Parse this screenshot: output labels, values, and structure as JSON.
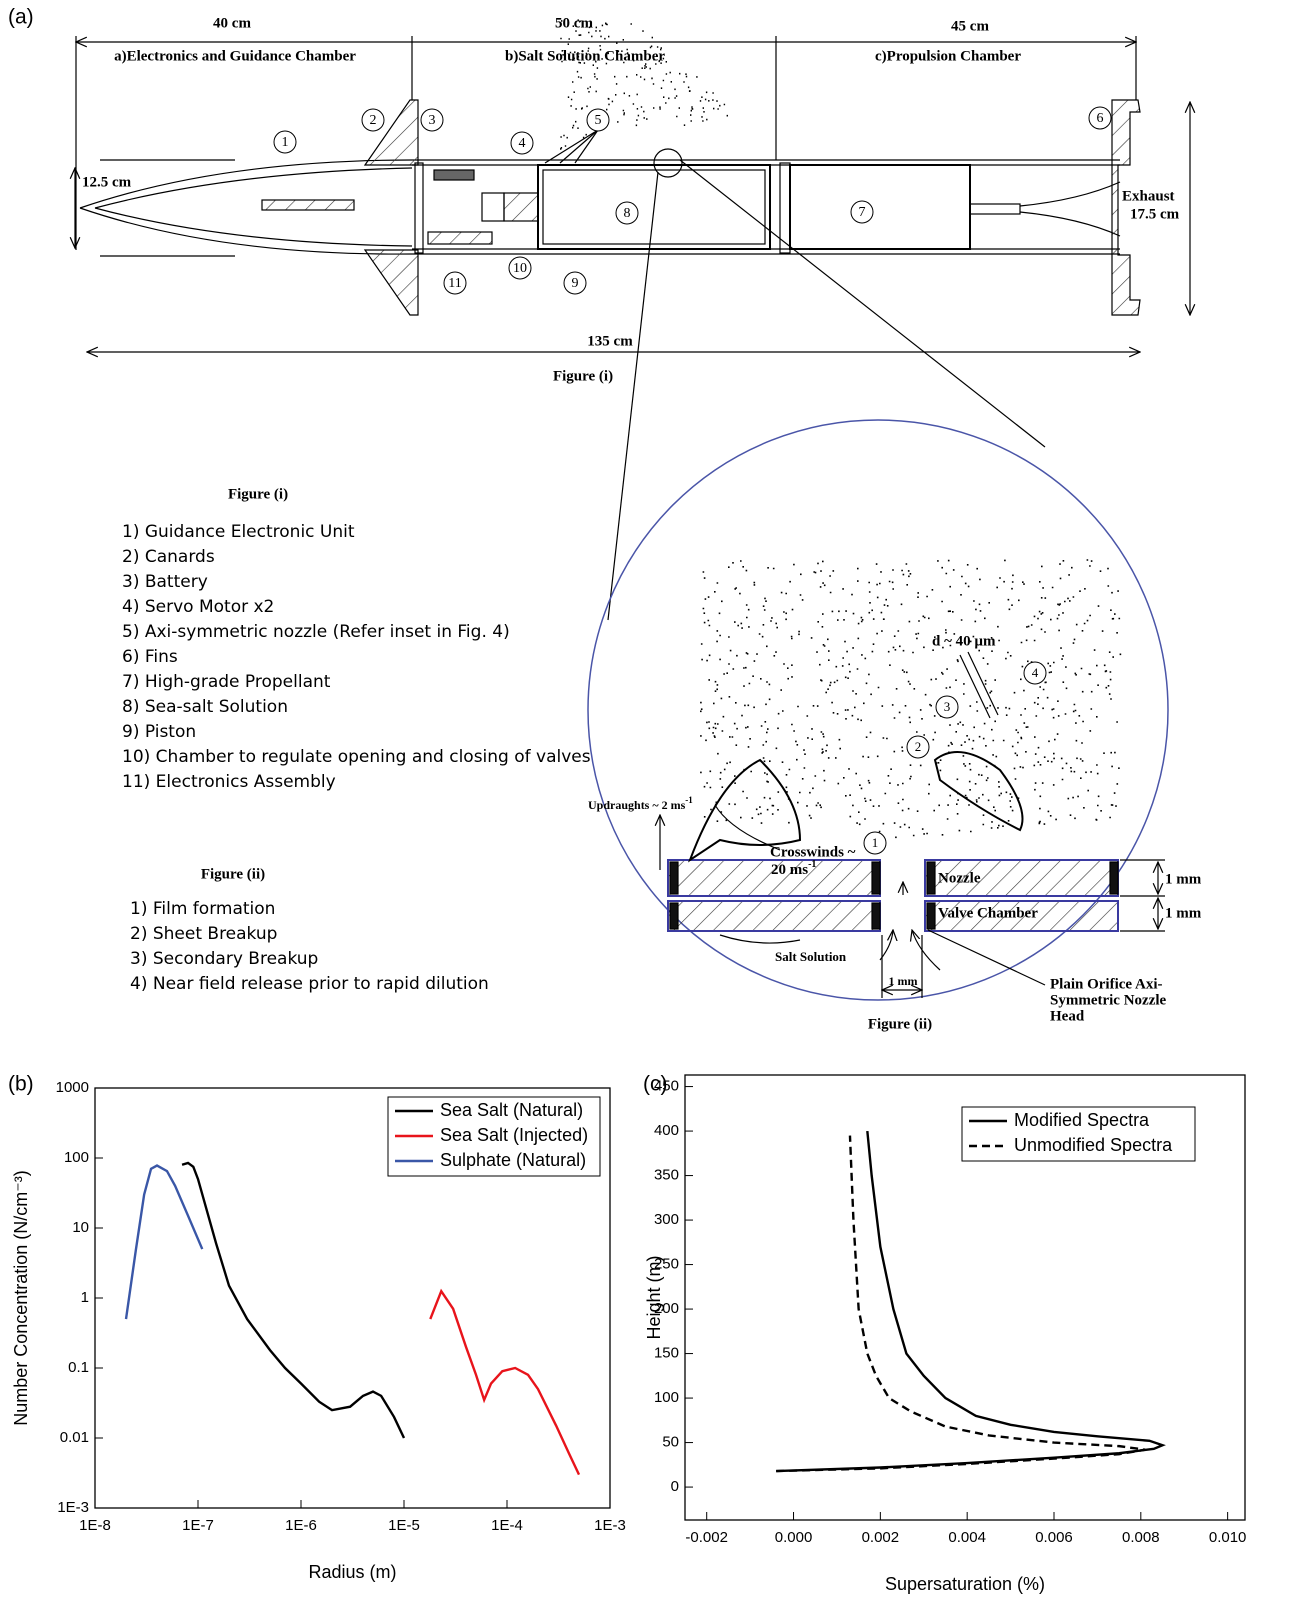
{
  "panel_a": {
    "label": "(a)",
    "top_dimensions": [
      "40 cm",
      "50 cm",
      "45 cm"
    ],
    "chambers": [
      "a)Electronics and Guidance Chamber",
      "b)Salt Solution Chamber",
      "c)Propulsion Chamber"
    ],
    "diameter": "12.5 cm",
    "exhaust": "Exhaust",
    "exhaust_diameter": "17.5 cm",
    "length": "135 cm",
    "caption": "Figure (i)",
    "callouts": [
      "1",
      "2",
      "3",
      "4",
      "5",
      "6",
      "7",
      "8",
      "9",
      "10",
      "11"
    ],
    "inset": {
      "callouts": [
        "1",
        "2",
        "3",
        "4"
      ],
      "droplet": "d ~ 40 µm",
      "updraughts": "Updraughts ~ 2 ms",
      "updraughts_unit": "-1",
      "crosswinds": "Crosswinds ~",
      "crosswinds_speed": "20 ms",
      "crosswinds_unit": "-1",
      "nozzle": "Nozzle",
      "valve": "Valve Chamber",
      "heights": [
        "1 mm",
        "1 mm"
      ],
      "orifice": "1 mm",
      "solution": "Salt Solution",
      "head": [
        "Plain Orifice Axi-",
        "Symmetric Nozzle",
        "Head"
      ],
      "caption": "Figure (ii)"
    },
    "legend_i": {
      "title": "Figure (i)",
      "items": [
        "1) Guidance Electronic Unit",
        "2) Canards",
        "3) Battery",
        "4) Servo Motor x2",
        "5) Axi-symmetric nozzle (Refer inset in Fig. 4)",
        "6) Fins",
        "7) High-grade Propellant",
        "8) Sea-salt Solution",
        "9) Piston",
        "10) Chamber to regulate opening and closing of valves",
        "11) Electronics Assembly"
      ]
    },
    "legend_ii": {
      "title": "Figure (ii)",
      "items": [
        "1) Film formation",
        "2) Sheet Breakup",
        "3) Secondary Breakup",
        "4) Near field release prior to rapid dilution"
      ]
    }
  },
  "chart_data": [
    {
      "type": "line",
      "panel": "(b)",
      "x_label": "Radius (m)",
      "y_label": "Number Concentration (N/cm⁻³)",
      "xscale": "log",
      "yscale": "log",
      "xlim": [
        1e-08,
        0.001
      ],
      "ylim": [
        0.001,
        1000
      ],
      "xticks": [
        {
          "value": 1e-08,
          "label": "1E-8"
        },
        {
          "value": 1e-07,
          "label": "1E-7"
        },
        {
          "value": 1e-06,
          "label": "1E-6"
        },
        {
          "value": 1e-05,
          "label": "1E-5"
        },
        {
          "value": 0.0001,
          "label": "1E-4"
        },
        {
          "value": 0.001,
          "label": "1E-3"
        }
      ],
      "yticks": [
        {
          "value": 0.001,
          "label": "1E-3"
        },
        0.01,
        0.1,
        1,
        10,
        100,
        1000
      ],
      "legend": "upper right",
      "series": [
        {
          "name": "Sea Salt (Natural)",
          "color": "#000000",
          "style": "solid",
          "x": [
            7e-08,
            8e-08,
            9e-08,
            1e-07,
            1.5e-07,
            2e-07,
            3e-07,
            5e-07,
            7e-07,
            1e-06,
            1.5e-06,
            2e-06,
            3e-06,
            4e-06,
            5e-06,
            6e-06,
            8e-06,
            1e-05
          ],
          "values": [
            80,
            85,
            75,
            50,
            6,
            1.5,
            0.5,
            0.18,
            0.1,
            0.06,
            0.033,
            0.025,
            0.028,
            0.04,
            0.046,
            0.04,
            0.02,
            0.01
          ]
        },
        {
          "name": "Sea Salt (Injected)",
          "color": "#e8141b",
          "style": "solid",
          "x": [
            1.8e-05,
            2.3e-05,
            3e-05,
            4e-05,
            5e-05,
            6e-05,
            7e-05,
            9e-05,
            0.00012,
            0.00016,
            0.0002,
            0.0003,
            0.0004,
            0.0005
          ],
          "values": [
            0.5,
            1.25,
            0.7,
            0.2,
            0.08,
            0.035,
            0.06,
            0.09,
            0.1,
            0.08,
            0.05,
            0.015,
            0.006,
            0.003
          ]
        },
        {
          "name": "Sulphate (Natural)",
          "color": "#3a57a7",
          "style": "solid",
          "x": [
            2e-08,
            2.5e-08,
            3e-08,
            3.5e-08,
            4e-08,
            5e-08,
            6e-08,
            8e-08,
            1.1e-07
          ],
          "values": [
            0.5,
            5,
            30,
            70,
            78,
            65,
            40,
            15,
            5
          ]
        }
      ]
    },
    {
      "type": "line",
      "panel": "(c)",
      "x_label": "Supersaturation (%)",
      "y_label": "Height (m)",
      "xlim": [
        -0.0025,
        0.0104
      ],
      "ylim": [
        -37,
        463
      ],
      "xticks": [
        -0.002,
        {
          "value": 0,
          "label": "0.000"
        },
        0.002,
        0.004,
        0.006,
        0.008,
        {
          "value": 0.01,
          "label": "0.010"
        }
      ],
      "yticks": [
        0,
        50,
        100,
        150,
        200,
        250,
        300,
        350,
        400,
        450
      ],
      "legend": "upper right",
      "series": [
        {
          "name": "Modified Spectra",
          "color": "#000000",
          "style": "solid",
          "x": [
            -0.0004,
            0.002,
            0.004,
            0.006,
            0.0075,
            0.0083,
            0.0085,
            0.0082,
            0.007,
            0.006,
            0.005,
            0.0042,
            0.0035,
            0.003,
            0.0026,
            0.0023,
            0.002,
            0.0018,
            0.0017
          ],
          "values": [
            18,
            22,
            27,
            33,
            38,
            43,
            47,
            52,
            57,
            62,
            70,
            80,
            100,
            125,
            150,
            200,
            270,
            350,
            400
          ]
        },
        {
          "name": "Unmodified Spectra",
          "color": "#000000",
          "style": "dashed",
          "x": [
            -0.0004,
            0.002,
            0.004,
            0.006,
            0.0075,
            0.0081,
            0.0075,
            0.006,
            0.0045,
            0.0035,
            0.0027,
            0.0022,
            0.0019,
            0.0017,
            0.0015,
            0.00138,
            0.0013
          ],
          "values": [
            18,
            21,
            26,
            32,
            37,
            42,
            46,
            50,
            58,
            68,
            85,
            100,
            125,
            150,
            200,
            300,
            395
          ]
        }
      ]
    }
  ]
}
